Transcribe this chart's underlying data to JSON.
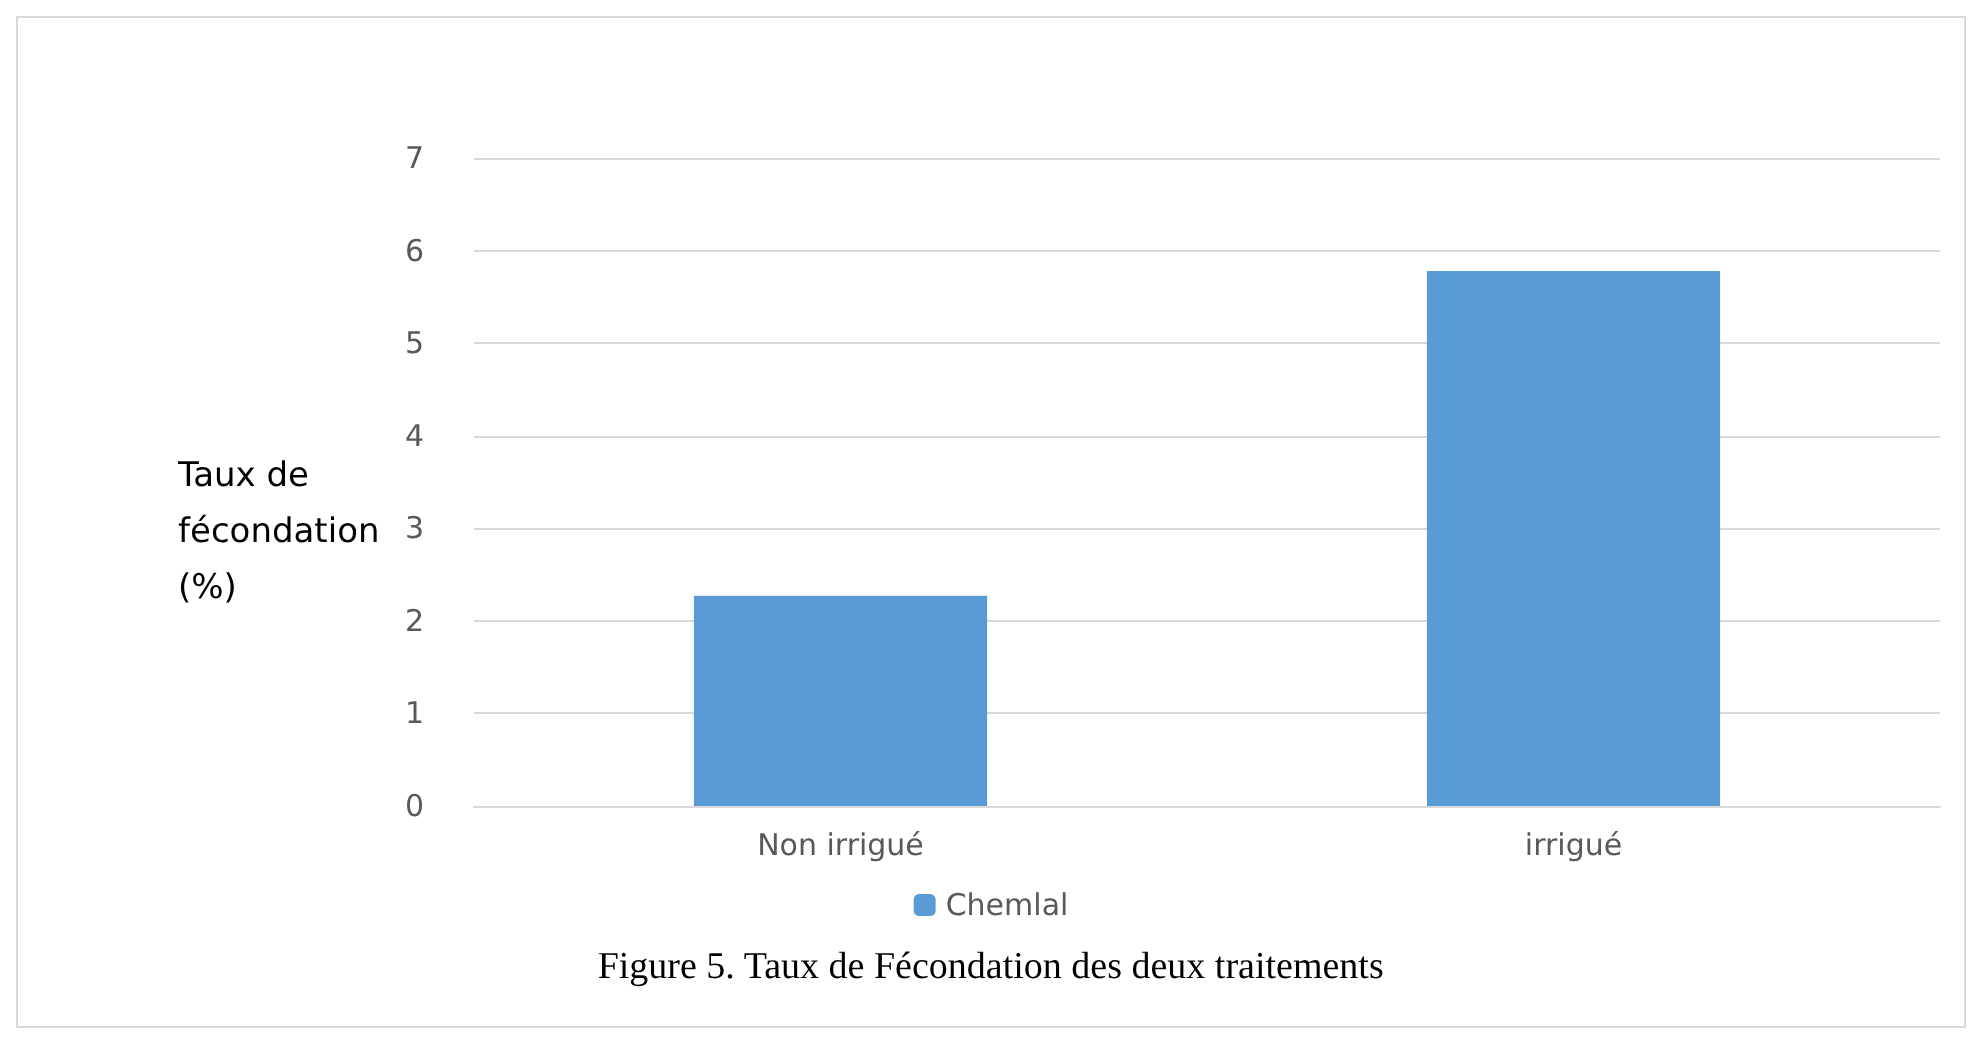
{
  "chart_data": {
    "type": "bar",
    "ylabel": "Taux de\nfécondation\n(%)",
    "categories": [
      "Non irrigué",
      "irrigué"
    ],
    "series": [
      {
        "name": "Chemlal",
        "color": "#5b9bd5",
        "values": [
          2.27,
          5.78
        ]
      }
    ],
    "ylim": [
      0,
      7
    ],
    "yticks": [
      0,
      1,
      2,
      3,
      4,
      5,
      6,
      7
    ],
    "grid": "y",
    "legend": "bottom",
    "annotations": [
      "Figure 5. Taux de Fécondation des deux traitements"
    ]
  }
}
